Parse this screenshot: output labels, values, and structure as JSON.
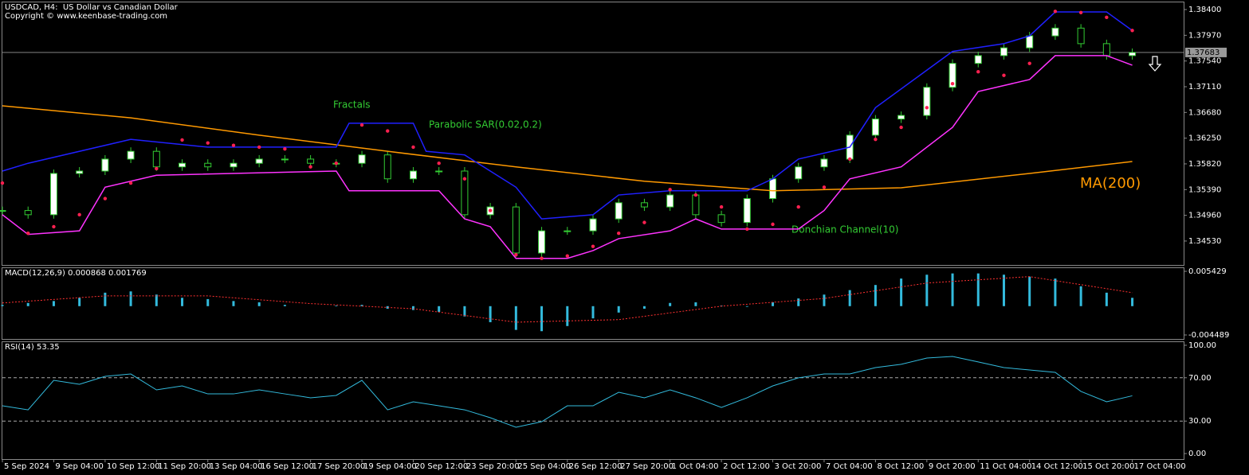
{
  "chart_data": [
    {
      "type": "candlestick",
      "title": "USDCAD, H4:  US Dollar vs Canadian Dollar",
      "subtitle": "Copyright © www.keenbase-trading.com",
      "annotations": [
        "Fractals"
      ],
      "xlim": [
        0,
        184
      ],
      "ylim": [
        1.3413,
        1.3852
      ],
      "yticks": [
        {
          "value": 1.384,
          "label": "1.38400"
        },
        {
          "value": 1.3797,
          "label": "1.37970"
        },
        {
          "value": 1.3754,
          "label": "1.37540"
        },
        {
          "value": 1.3711,
          "label": "1.37110"
        },
        {
          "value": 1.3668,
          "label": "1.36680"
        },
        {
          "value": 1.3625,
          "label": "1.36250"
        },
        {
          "value": 1.3582,
          "label": "1.35820"
        },
        {
          "value": 1.3539,
          "label": "1.35390"
        },
        {
          "value": 1.3496,
          "label": "1.34960"
        },
        {
          "value": 1.3453,
          "label": "1.34530"
        }
      ],
      "last": 1.37683,
      "candles": {
        "color": "#33cc33",
        "x": [
          0,
          4,
          8,
          12,
          16,
          20,
          24,
          28,
          32,
          36,
          40,
          44,
          48,
          52,
          56,
          60,
          64,
          68,
          72,
          76,
          80,
          84,
          88,
          92,
          96,
          100,
          104,
          108,
          112,
          116,
          120,
          124,
          128,
          132,
          136,
          140,
          144,
          148,
          152,
          156,
          160,
          164,
          168,
          172,
          176
        ],
        "close": [
          1.3504,
          1.3497,
          1.3566,
          1.357,
          1.359,
          1.3603,
          1.3577,
          1.3583,
          1.3577,
          1.3583,
          1.359,
          1.359,
          1.3583,
          1.3583,
          1.3597,
          1.3557,
          1.357,
          1.357,
          1.3497,
          1.351,
          1.3433,
          1.347,
          1.347,
          1.349,
          1.3517,
          1.351,
          1.353,
          1.3497,
          1.3484,
          1.3524,
          1.3557,
          1.3577,
          1.359,
          1.363,
          1.3657,
          1.3663,
          1.371,
          1.375,
          1.3763,
          1.3776,
          1.3796,
          1.3809,
          1.3783,
          1.3763,
          1.37683
        ]
      },
      "series": [
        {
          "name": "MA(200)",
          "color": "#ff9900",
          "x": [
            0,
            20,
            40,
            60,
            80,
            100,
            120,
            140,
            160,
            176
          ],
          "values": [
            1.3679,
            1.3659,
            1.363,
            1.3603,
            1.3577,
            1.3553,
            1.3537,
            1.3542,
            1.3566,
            1.3586
          ]
        },
        {
          "name": "Donchian Channel(10)",
          "color": "#2020ff",
          "x": [
            0,
            4,
            20,
            32,
            52,
            54,
            64,
            66,
            72,
            80,
            84,
            92,
            96,
            104,
            116,
            120,
            124,
            132,
            136,
            148,
            156,
            160,
            164,
            172,
            176
          ],
          "values": [
            1.357,
            1.3583,
            1.3623,
            1.361,
            1.361,
            1.365,
            1.365,
            1.3603,
            1.3597,
            1.3543,
            1.349,
            1.3497,
            1.353,
            1.3537,
            1.3537,
            1.3557,
            1.359,
            1.361,
            1.3676,
            1.377,
            1.3783,
            1.3796,
            1.3836,
            1.3836,
            1.3805
          ]
        },
        {
          "color": "#ff33ff",
          "x": [
            0,
            4,
            12,
            16,
            24,
            52,
            54,
            68,
            72,
            76,
            80,
            88,
            92,
            96,
            104,
            108,
            112,
            124,
            128,
            132,
            140,
            148,
            152,
            160,
            164,
            172,
            176
          ],
          "values": [
            1.3497,
            1.3464,
            1.347,
            1.3543,
            1.3563,
            1.357,
            1.3537,
            1.3537,
            1.349,
            1.3477,
            1.3424,
            1.3424,
            1.3437,
            1.3457,
            1.347,
            1.349,
            1.3473,
            1.3473,
            1.3504,
            1.3557,
            1.3577,
            1.3643,
            1.3703,
            1.3723,
            1.3763,
            1.3763,
            1.3747
          ]
        },
        {
          "name": "Parabolic SAR(0.02,0.2)",
          "color": "#ff2050",
          "style": "dots",
          "x": [
            0,
            4,
            8,
            12,
            16,
            20,
            24,
            28,
            32,
            36,
            40,
            44,
            48,
            52,
            56,
            60,
            64,
            68,
            72,
            76,
            80,
            84,
            88,
            92,
            96,
            100,
            104,
            108,
            112,
            116,
            120,
            124,
            128,
            132,
            136,
            140,
            144,
            148,
            152,
            156,
            160,
            164,
            168,
            172,
            176
          ],
          "values": [
            1.355,
            1.3466,
            1.3477,
            1.3497,
            1.3524,
            1.355,
            1.3574,
            1.3622,
            1.3617,
            1.3613,
            1.361,
            1.3607,
            1.3577,
            1.3583,
            1.3647,
            1.3637,
            1.361,
            1.3583,
            1.3557,
            1.3504,
            1.343,
            1.3424,
            1.3428,
            1.3444,
            1.3466,
            1.3484,
            1.3539,
            1.353,
            1.351,
            1.3473,
            1.3481,
            1.351,
            1.3543,
            1.359,
            1.3623,
            1.3643,
            1.3676,
            1.3716,
            1.3736,
            1.373,
            1.375,
            1.3837,
            1.3835,
            1.3827,
            1.3805
          ]
        }
      ]
    },
    {
      "type": "bar",
      "title": "MACD(12,26,9) 0.000868 0.001769",
      "xlim": [
        0,
        184
      ],
      "ylim": [
        -0.005109,
        0.005925
      ],
      "yticks": [
        0.005429,
        -0.004489
      ],
      "series": [
        {
          "color": "#33bbdd",
          "x": [
            0,
            4,
            8,
            12,
            16,
            20,
            24,
            28,
            32,
            36,
            40,
            44,
            48,
            52,
            56,
            60,
            64,
            68,
            72,
            76,
            80,
            84,
            88,
            92,
            96,
            100,
            104,
            108,
            112,
            116,
            120,
            124,
            128,
            132,
            136,
            140,
            144,
            148,
            152,
            156,
            160,
            164,
            168,
            172,
            176
          ],
          "values": [
            0.0002,
            0.0005,
            0.0008,
            0.0013,
            0.0021,
            0.0023,
            0.0018,
            0.0013,
            0.0011,
            0.0008,
            0.0006,
            0.0002,
            0,
            0.0001,
            0.0002,
            -0.0004,
            -0.0006,
            -0.0009,
            -0.0016,
            -0.0025,
            -0.0037,
            -0.0039,
            -0.0031,
            -0.0019,
            -0.001,
            -0.0004,
            0.0005,
            0.0006,
            0.0001,
            -0.0001,
            0.0006,
            0.0012,
            0.0018,
            0.0025,
            0.0033,
            0.0043,
            0.0049,
            0.0051,
            0.0051,
            0.0049,
            0.0046,
            0.0043,
            0.0031,
            0.0021,
            0.0013
          ]
        },
        {
          "color": "#ff3030",
          "style": "dotted",
          "x": [
            0,
            16,
            32,
            48,
            64,
            80,
            96,
            112,
            128,
            144,
            160,
            176
          ],
          "values": [
            0.0005,
            0.0016,
            0.0016,
            0.0004,
            -0.0004,
            -0.0025,
            -0.0021,
            0,
            0.0012,
            0.0036,
            0.0046,
            0.0021
          ]
        }
      ]
    },
    {
      "type": "line",
      "title": "RSI(14) 53.35",
      "xlim": [
        0,
        184
      ],
      "ylim": [
        -5.1,
        102.9
      ],
      "yticks": [
        {
          "value": 100,
          "label": "100.00"
        },
        {
          "value": 70,
          "label": "70.00"
        },
        {
          "value": 30,
          "label": "30.00"
        },
        {
          "value": 0,
          "label": "0.00"
        }
      ],
      "levels": [
        70,
        30
      ],
      "xticks": [
        {
          "value": 0,
          "label": "5 Sep 2024"
        },
        {
          "value": 8,
          "label": "9 Sep 04:00"
        },
        {
          "value": 16,
          "label": "10 Sep 12:00"
        },
        {
          "value": 24,
          "label": "11 Sep 20:00"
        },
        {
          "value": 32,
          "label": "13 Sep 04:00"
        },
        {
          "value": 40,
          "label": "16 Sep 12:00"
        },
        {
          "value": 48,
          "label": "17 Sep 20:00"
        },
        {
          "value": 56,
          "label": "19 Sep 04:00"
        },
        {
          "value": 64,
          "label": "20 Sep 12:00"
        },
        {
          "value": 72,
          "label": "23 Sep 20:00"
        },
        {
          "value": 80,
          "label": "25 Sep 04:00"
        },
        {
          "value": 88,
          "label": "26 Sep 12:00"
        },
        {
          "value": 96,
          "label": "27 Sep 20:00"
        },
        {
          "value": 104,
          "label": "1 Oct 04:00"
        },
        {
          "value": 112,
          "label": "2 Oct 12:00"
        },
        {
          "value": 120,
          "label": "3 Oct 20:00"
        },
        {
          "value": 128,
          "label": "7 Oct 04:00"
        },
        {
          "value": 136,
          "label": "8 Oct 12:00"
        },
        {
          "value": 144,
          "label": "9 Oct 20:00"
        },
        {
          "value": 152,
          "label": "11 Oct 04:00"
        },
        {
          "value": 160,
          "label": "14 Oct 12:00"
        },
        {
          "value": 168,
          "label": "15 Oct 20:00"
        },
        {
          "value": 176,
          "label": "17 Oct 04:00"
        }
      ],
      "series": [
        {
          "color": "#33bbdd",
          "x": [
            0,
            4,
            8,
            12,
            16,
            20,
            24,
            28,
            32,
            36,
            40,
            44,
            48,
            52,
            56,
            60,
            64,
            68,
            72,
            76,
            80,
            84,
            88,
            92,
            96,
            100,
            104,
            108,
            112,
            116,
            120,
            124,
            128,
            132,
            136,
            140,
            144,
            148,
            152,
            156,
            160,
            164,
            168,
            172,
            176
          ],
          "values": [
            44.1,
            40.4,
            67.6,
            64,
            71.3,
            73.5,
            58.8,
            62.5,
            55.1,
            55.1,
            58.8,
            55.1,
            51.5,
            53.7,
            67.6,
            40.4,
            47.8,
            44.1,
            40.4,
            33.1,
            24.3,
            29.4,
            44.1,
            44.1,
            56.6,
            51.5,
            58.8,
            51.5,
            42.6,
            51.5,
            62.5,
            69.9,
            73.5,
            73.5,
            79.4,
            82.4,
            88.2,
            89.7,
            84.6,
            79.4,
            77.2,
            75.0,
            57.4,
            47.8,
            53.35
          ]
        }
      ]
    }
  ]
}
